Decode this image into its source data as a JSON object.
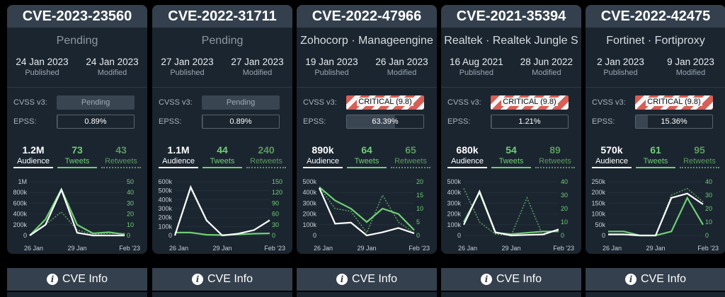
{
  "colors": {
    "tweets": "#6fcf73",
    "retweets": "#5a9a5e",
    "audience": "#ffffff",
    "critical": "#d65f57"
  },
  "info_label": "CVE Info",
  "labels": {
    "published": "Published",
    "modified": "Modified",
    "cvss": "CVSS v3:",
    "epss": "EPSS:",
    "audience": "Audience",
    "tweets": "Tweets",
    "retweets": "Retweets"
  },
  "cards": [
    {
      "id": "CVE-2023-23560",
      "vendor": "Pending",
      "pending": true,
      "published": "24 Jan 2023",
      "modified": "24 Jan 2023",
      "cvss": "Pending",
      "cvss_type": "pending",
      "epss": "0.89%",
      "epss_value": 0.89,
      "audience": "1.2M",
      "tweets": "73",
      "retweets": "43",
      "chart_data": {
        "type": "line",
        "left_ticks": [
          "1M",
          "800k",
          "600k",
          "400k",
          "200k",
          "0"
        ],
        "right_ticks": [
          "50",
          "40",
          "30",
          "20",
          "10",
          "0"
        ],
        "x_ticks": [
          "26 Jan",
          "29 Jan",
          "Feb '23"
        ],
        "left_max": 1000000,
        "right_max": 50,
        "audience": [
          0,
          200000,
          850000,
          50000,
          0,
          0,
          0
        ],
        "tweets": [
          0,
          15,
          43,
          10,
          2,
          3,
          1
        ],
        "retweets": [
          0,
          10,
          22,
          5,
          1,
          2,
          2
        ]
      }
    },
    {
      "id": "CVE-2022-31711",
      "vendor": "Pending",
      "pending": true,
      "published": "27 Jan 2023",
      "modified": "27 Jan 2023",
      "cvss": "Pending",
      "cvss_type": "pending",
      "epss": "0.89%",
      "epss_value": 0.89,
      "audience": "1.1M",
      "tweets": "44",
      "retweets": "240",
      "chart_data": {
        "type": "line",
        "left_ticks": [
          "600k",
          "500k",
          "400k",
          "300k",
          "200k",
          "100k",
          "0"
        ],
        "right_ticks": [
          "150",
          "120",
          "90",
          "60",
          "30",
          "0"
        ],
        "x_ticks": [
          "26 Jan",
          "29 Jan",
          "Feb '23"
        ],
        "left_max": 600000,
        "right_max": 150,
        "audience": [
          0,
          540000,
          170000,
          0,
          20000,
          60000,
          170000
        ],
        "tweets": [
          8,
          8,
          2,
          1,
          3,
          5,
          6
        ],
        "retweets": [
          0,
          130,
          40,
          0,
          5,
          15,
          45
        ]
      }
    },
    {
      "id": "CVE-2022-47966",
      "vendor": "Zohocorp · Manageengine",
      "pending": false,
      "published": "19 Jan 2023",
      "modified": "26 Jan 2023",
      "cvss": "CRITICAL (9.8)",
      "cvss_type": "critical",
      "epss": "63.39%",
      "epss_value": 63.39,
      "audience": "890k",
      "tweets": "64",
      "retweets": "65",
      "chart_data": {
        "type": "line",
        "left_ticks": [
          "500k",
          "400k",
          "300k",
          "200k",
          "100k",
          "0"
        ],
        "right_ticks": [
          "20",
          "15",
          "10",
          "5",
          "0"
        ],
        "x_ticks": [
          "26 Jan",
          "29 Jan",
          "Feb '23"
        ],
        "left_max": 500000,
        "right_max": 20,
        "audience": [
          440000,
          110000,
          120000,
          0,
          30000,
          70000,
          20000
        ],
        "tweets": [
          18,
          13,
          10,
          5,
          10,
          8,
          2
        ],
        "retweets": [
          18,
          10,
          9,
          1,
          15,
          5,
          1
        ]
      }
    },
    {
      "id": "CVE-2021-35394",
      "vendor": "Realtek · Realtek Jungle S",
      "pending": false,
      "published": "16 Aug 2021",
      "modified": "28 Jun 2022",
      "cvss": "CRITICAL (9.8)",
      "cvss_type": "critical",
      "epss": "1.21%",
      "epss_value": 1.21,
      "audience": "680k",
      "tweets": "54",
      "retweets": "89",
      "chart_data": {
        "type": "line",
        "left_ticks": [
          "500k",
          "400k",
          "300k",
          "200k",
          "100k",
          "0"
        ],
        "right_ticks": [
          "40",
          "30",
          "20",
          "10",
          "0"
        ],
        "x_ticks": [
          "26 Jan",
          "29 Jan",
          "Feb '23"
        ],
        "left_max": 500000,
        "right_max": 40,
        "audience": [
          100000,
          410000,
          30000,
          0,
          5000,
          10000,
          55000
        ],
        "tweets": [
          10,
          32,
          2,
          1,
          2,
          3,
          3
        ],
        "retweets": [
          35,
          10,
          1,
          0,
          28,
          0,
          5
        ]
      }
    },
    {
      "id": "CVE-2022-42475",
      "vendor": "Fortinet · Fortiproxy",
      "pending": false,
      "published": "2 Jan 2023",
      "modified": "9 Jan 2023",
      "cvss": "CRITICAL (9.8)",
      "cvss_type": "critical",
      "epss": "15.36%",
      "epss_value": 15.36,
      "audience": "570k",
      "tweets": "61",
      "retweets": "95",
      "chart_data": {
        "type": "line",
        "left_ticks": [
          "250k",
          "200k",
          "150k",
          "100k",
          "50k",
          "0"
        ],
        "right_ticks": [
          "40",
          "30",
          "20",
          "10",
          "0"
        ],
        "x_ticks": [
          "26 Jan",
          "29 Jan",
          "Feb '23"
        ],
        "left_max": 250000,
        "right_max": 40,
        "audience": [
          5000,
          5000,
          0,
          0,
          175000,
          195000,
          145000
        ],
        "tweets": [
          3,
          3,
          0,
          0,
          3,
          28,
          8
        ],
        "retweets": [
          1,
          1,
          0,
          0,
          30,
          35,
          25
        ]
      }
    }
  ]
}
